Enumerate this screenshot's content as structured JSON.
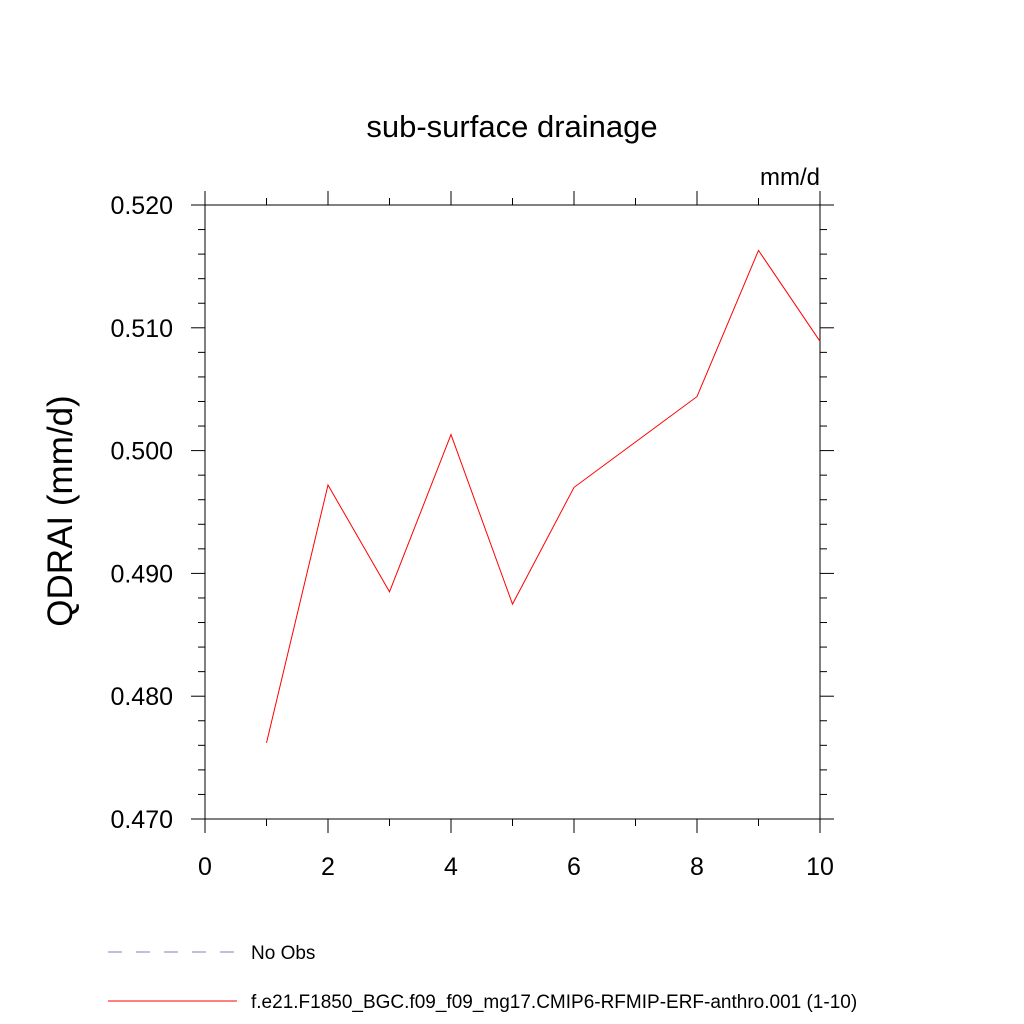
{
  "chart_data": {
    "type": "line",
    "title": "sub-surface drainage",
    "units_label": "mm/d",
    "ylabel": "QDRAI  (mm/d)",
    "xlabel": "",
    "xlim": [
      0,
      10
    ],
    "ylim": [
      0.47,
      0.52
    ],
    "x_ticks": [
      0,
      2,
      4,
      6,
      8,
      10
    ],
    "x_tick_labels": [
      "0",
      "2",
      "4",
      "6",
      "8",
      "10"
    ],
    "y_ticks": [
      0.47,
      0.48,
      0.49,
      0.5,
      0.51,
      0.52
    ],
    "y_tick_labels": [
      "0.470",
      "0.480",
      "0.490",
      "0.500",
      "0.510",
      "0.520"
    ],
    "grid": false,
    "legend_placement": "bottom",
    "series": [
      {
        "name": "f.e21.F1850_BGC.f09_f09_mg17.CMIP6-RFMIP-ERF-anthro.001 (1-10)",
        "color": "#ff0000",
        "x": [
          1,
          2,
          3,
          4,
          5,
          6,
          7,
          8,
          9,
          10
        ],
        "values": [
          0.4762,
          0.4972,
          0.4885,
          0.5013,
          0.4875,
          0.497,
          0.5007,
          0.5044,
          0.5163,
          0.5089
        ]
      }
    ],
    "legend": [
      {
        "label": "No Obs",
        "color": "#8a7fb0",
        "style": "dashed"
      },
      {
        "label": "f.e21.F1850_BGC.f09_f09_mg17.CMIP6-RFMIP-ERF-anthro.001 (1-10)",
        "color": "#ff0000",
        "style": "solid"
      }
    ]
  }
}
